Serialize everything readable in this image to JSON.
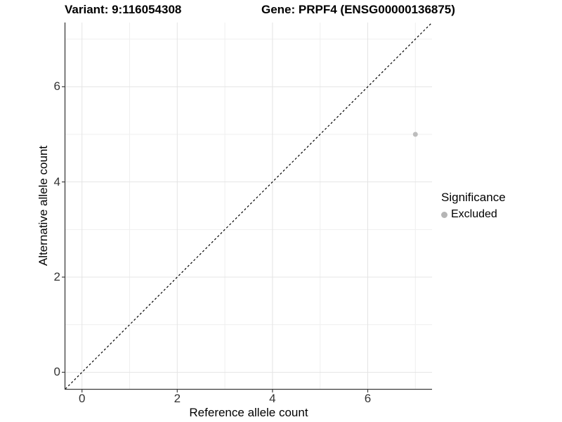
{
  "titles": {
    "variant": "Variant: 9:116054308",
    "gene": "Gene: PRPF4 (ENSG00000136875)"
  },
  "chart_data": {
    "type": "scatter",
    "xlabel": "Reference allele count",
    "ylabel": "Alternative allele count",
    "xlim": [
      -0.35,
      7.35
    ],
    "ylim": [
      -0.35,
      7.35
    ],
    "x_ticks": [
      0,
      2,
      4,
      6
    ],
    "y_ticks": [
      0,
      2,
      4,
      6
    ],
    "x_minor_ticks": [
      1,
      3,
      5,
      7
    ],
    "y_minor_ticks": [
      1,
      3,
      5,
      7
    ],
    "grid": true,
    "identity_line": {
      "type": "y=x",
      "style": "dashed",
      "color": "#000000"
    },
    "series": [
      {
        "name": "Excluded",
        "color": "#bdbdbd",
        "points": [
          {
            "x": 7,
            "y": 5
          }
        ]
      }
    ],
    "legend": {
      "title": "Significance",
      "position": "right",
      "items": [
        {
          "label": "Excluded",
          "color": "#b5b5b5"
        }
      ]
    }
  },
  "colors": {
    "background": "#ffffff",
    "grid_major": "#e4e4e4",
    "grid_minor": "#efefef",
    "axis_line": "#3c3c3c",
    "tick_text": "#333333",
    "title_text": "#000000"
  }
}
